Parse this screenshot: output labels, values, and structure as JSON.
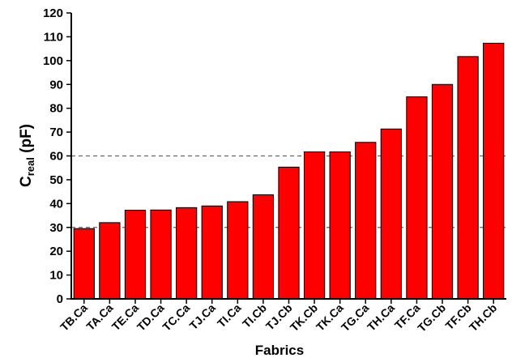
{
  "chart_data": {
    "type": "bar",
    "categories": [
      "TB.Ca",
      "TA.Ca",
      "TE.Ca",
      "TD.Ca",
      "TC.Ca",
      "TJ.Ca",
      "TI.Ca",
      "TI.Cb",
      "TJ.Cb",
      "TK.Cb",
      "TK.Ca",
      "TG.Ca",
      "TH.Ca",
      "TF.Ca",
      "TG.Cb",
      "TF.Cb",
      "TH.Cb"
    ],
    "values": [
      29.5,
      32,
      37.2,
      37.3,
      38.3,
      39,
      40.8,
      43.7,
      55.3,
      61.7,
      61.7,
      65.7,
      71.3,
      84.8,
      90,
      101.7,
      107.3
    ],
    "xlabel": "Fabrics",
    "ylabel": {
      "main": "C",
      "subscript": "real",
      "suffix": " (pF)"
    },
    "ylim": [
      0,
      120
    ],
    "yticks": [
      0,
      10,
      20,
      30,
      40,
      50,
      60,
      70,
      80,
      90,
      100,
      110,
      120
    ],
    "reference_lines": [
      30,
      60
    ],
    "bar_color": "#ff0000",
    "grid": false,
    "legend": "none"
  }
}
